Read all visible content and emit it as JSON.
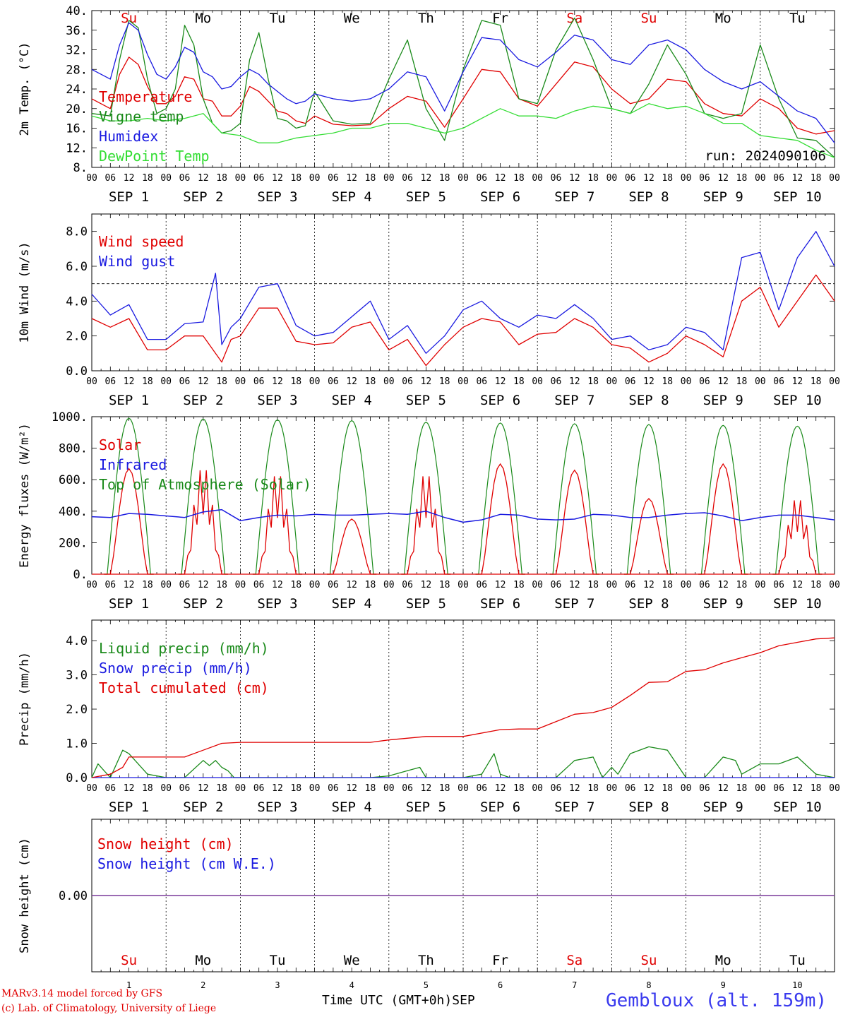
{
  "footer": {
    "line1": "MARv3.14 model forced by GFS",
    "line2": "(c) Lab. of Climatology, University of Liege",
    "xaxis_title": "Time UTC (GMT+0h)",
    "month_label": "SEP",
    "station": "Gembloux (alt. 159m)"
  },
  "colors": {
    "red": "#e00000",
    "green": "#1a8a1a",
    "blue": "#1a1ae0",
    "lightgreen": "#33dd33",
    "purple": "#7a3a9a"
  },
  "days": {
    "names": [
      "Su",
      "Mo",
      "Tu",
      "We",
      "Th",
      "Fr",
      "Sa",
      "Su",
      "Mo",
      "Tu"
    ],
    "weekend": [
      true,
      false,
      false,
      false,
      false,
      false,
      true,
      true,
      false,
      false
    ],
    "dates": [
      "SEP  1",
      "SEP  2",
      "SEP  3",
      "SEP  4",
      "SEP  5",
      "SEP  6",
      "SEP  7",
      "SEP  8",
      "SEP  9",
      "SEP 10"
    ],
    "numbers": [
      "1",
      "2",
      "3",
      "4",
      "5",
      "6",
      "7",
      "8",
      "9",
      "10"
    ],
    "hour_ticks": [
      "00",
      "06",
      "12",
      "18"
    ]
  },
  "chart_data": [
    {
      "type": "line",
      "id": "temperature",
      "ylabel": "2m Temp. (°C)",
      "yticks": [
        "8.",
        "12.",
        "16.",
        "20.",
        "24.",
        "28.",
        "32.",
        "36.",
        "40."
      ],
      "ylim": [
        8,
        40
      ],
      "run_label": "run: 2024090106",
      "x_unit": "hours since SEP 1 00 UTC",
      "series": [
        {
          "name": "Temperature",
          "color": "red",
          "x": [
            0,
            6,
            9,
            12,
            15,
            18,
            21,
            24,
            27,
            30,
            33,
            36,
            39,
            42,
            45,
            48,
            51,
            54,
            57,
            60,
            63,
            66,
            69,
            72,
            78,
            84,
            90,
            96,
            102,
            108,
            114,
            120,
            126,
            132,
            138,
            144,
            150,
            156,
            162,
            168,
            174,
            180,
            186,
            192,
            198,
            204,
            210,
            216,
            222,
            228,
            234,
            240
          ],
          "values": [
            22,
            20,
            27,
            30.5,
            29,
            24.5,
            21,
            21,
            22.5,
            26.5,
            26,
            22,
            21.5,
            18.5,
            18.5,
            20.5,
            24.5,
            23.5,
            21.5,
            19.5,
            19,
            17.5,
            17,
            18.5,
            16.8,
            16.5,
            16.7,
            20,
            22.5,
            21.5,
            16.2,
            22,
            28,
            27.5,
            22,
            20.5,
            25,
            29.5,
            28.5,
            24,
            21,
            22,
            26,
            25.5,
            21,
            19,
            18.5,
            22,
            20,
            16,
            14.8,
            15.5
          ]
        },
        {
          "name": "Vigne temp",
          "color": "green",
          "x": [
            0,
            6,
            9,
            12,
            15,
            18,
            21,
            24,
            27,
            30,
            33,
            36,
            39,
            42,
            45,
            48,
            51,
            54,
            57,
            60,
            63,
            66,
            69,
            72,
            78,
            84,
            90,
            96,
            102,
            108,
            114,
            120,
            126,
            132,
            138,
            144,
            150,
            156,
            162,
            168,
            174,
            180,
            186,
            192,
            198,
            204,
            210,
            216,
            222,
            228,
            234,
            240
          ],
          "values": [
            19,
            18.5,
            30,
            38,
            36.5,
            26,
            19,
            20,
            24,
            37,
            33,
            22,
            17,
            15,
            15.5,
            17,
            30,
            35.5,
            26,
            18,
            17.5,
            16,
            16.5,
            23.5,
            17.5,
            16.8,
            17,
            26,
            34,
            20,
            13.5,
            28,
            38,
            37,
            22,
            21,
            32,
            38.5,
            30,
            20,
            19,
            25,
            33,
            27,
            19,
            18,
            19,
            33,
            22,
            14,
            13.5,
            10
          ]
        },
        {
          "name": "Humidex",
          "color": "blue",
          "x": [
            0,
            6,
            9,
            12,
            15,
            18,
            21,
            24,
            27,
            30,
            33,
            36,
            39,
            42,
            45,
            48,
            51,
            54,
            57,
            60,
            63,
            66,
            69,
            72,
            78,
            84,
            90,
            96,
            102,
            108,
            114,
            120,
            126,
            132,
            138,
            144,
            150,
            156,
            162,
            168,
            174,
            180,
            186,
            192,
            198,
            204,
            210,
            216,
            222,
            228,
            234,
            240
          ],
          "values": [
            28,
            26,
            33,
            37.5,
            36,
            31,
            27,
            26,
            28.5,
            32.5,
            31.5,
            27.5,
            26.5,
            24,
            24.5,
            26.5,
            28,
            27,
            25,
            23.5,
            22,
            21,
            21.5,
            23,
            22,
            21.5,
            22,
            24,
            27.5,
            26.5,
            19.5,
            27.5,
            34.5,
            34,
            30,
            28.5,
            31.5,
            35,
            34,
            30,
            29,
            33,
            34,
            32,
            28,
            25.5,
            24,
            25.5,
            22.5,
            19.5,
            18,
            13
          ]
        },
        {
          "name": "DewPoint Temp",
          "color": "lightgreen",
          "x": [
            0,
            6,
            12,
            18,
            24,
            30,
            36,
            42,
            48,
            54,
            60,
            66,
            72,
            78,
            84,
            90,
            96,
            102,
            108,
            114,
            120,
            126,
            132,
            138,
            144,
            150,
            156,
            162,
            168,
            174,
            180,
            186,
            192,
            198,
            204,
            210,
            216,
            222,
            228,
            234,
            240
          ],
          "values": [
            18.5,
            17.5,
            17.5,
            18,
            17.5,
            18,
            19,
            15,
            14.5,
            13,
            13,
            14,
            14.5,
            15,
            16,
            16,
            17,
            17,
            16,
            15,
            16,
            18,
            20,
            18.5,
            18.5,
            18,
            19.5,
            20.5,
            20,
            19,
            21,
            20,
            20.5,
            19,
            17,
            17,
            14.5,
            14,
            13.5,
            11.5,
            10
          ]
        }
      ]
    },
    {
      "type": "line",
      "id": "wind",
      "ylabel": "10m Wind (m/s)",
      "yticks": [
        "0.0",
        "2.0",
        "4.0",
        "6.0",
        "8.0"
      ],
      "ylim": [
        0,
        9
      ],
      "reference_line": 5,
      "x_unit": "hours since SEP 1 00 UTC",
      "series": [
        {
          "name": "Wind speed",
          "color": "red",
          "x": [
            0,
            6,
            12,
            18,
            24,
            30,
            36,
            42,
            45,
            48,
            54,
            60,
            66,
            72,
            78,
            84,
            90,
            96,
            102,
            108,
            114,
            120,
            126,
            132,
            138,
            144,
            150,
            156,
            162,
            168,
            174,
            180,
            186,
            192,
            198,
            204,
            210,
            216,
            222,
            228,
            234,
            240
          ],
          "values": [
            3,
            2.5,
            3,
            1.2,
            1.2,
            2,
            2,
            0.5,
            1.8,
            2,
            3.6,
            3.6,
            1.7,
            1.5,
            1.6,
            2.5,
            2.8,
            1.2,
            1.8,
            0.3,
            1.5,
            2.5,
            3,
            2.8,
            1.5,
            2.1,
            2.2,
            3,
            2.5,
            1.5,
            1.3,
            0.5,
            1,
            2,
            1.5,
            0.8,
            4,
            4.8,
            2.5,
            4,
            5.5,
            4
          ]
        },
        {
          "name": "Wind gust",
          "color": "blue",
          "x": [
            0,
            6,
            12,
            18,
            24,
            30,
            36,
            40,
            42,
            45,
            48,
            54,
            60,
            66,
            72,
            78,
            84,
            90,
            96,
            102,
            108,
            114,
            120,
            126,
            132,
            138,
            144,
            150,
            156,
            162,
            168,
            174,
            180,
            186,
            192,
            198,
            204,
            210,
            216,
            222,
            228,
            234,
            240
          ],
          "values": [
            4.4,
            3.2,
            3.8,
            1.8,
            1.8,
            2.7,
            2.8,
            5.6,
            1.5,
            2.5,
            3,
            4.8,
            5,
            2.6,
            2,
            2.2,
            3.1,
            4,
            1.8,
            2.6,
            1,
            2,
            3.5,
            4,
            3,
            2.5,
            3.2,
            3,
            3.8,
            3,
            1.8,
            2,
            1.2,
            1.5,
            2.5,
            2.2,
            1.2,
            6.5,
            6.8,
            3.5,
            6.5,
            8,
            6
          ]
        }
      ]
    },
    {
      "type": "line",
      "id": "energy",
      "ylabel": "Energy fluxes (W/m²)",
      "yticks": [
        "0.",
        "200.",
        "400.",
        "600.",
        "800.",
        "1000."
      ],
      "ylim": [
        0,
        1000
      ],
      "x_unit": "hours since SEP 1 00 UTC",
      "daily_toa_peak": [
        990,
        985,
        980,
        975,
        965,
        960,
        955,
        950,
        945,
        940
      ],
      "daily_solar_peak": [
        670,
        690,
        650,
        350,
        650,
        700,
        660,
        480,
        700,
        490
      ],
      "daily_solar_spiky": [
        false,
        true,
        true,
        false,
        true,
        false,
        false,
        false,
        false,
        true
      ],
      "series": [
        {
          "name": "Solar",
          "color": "red"
        },
        {
          "name": "Infrared",
          "color": "blue",
          "x": [
            0,
            6,
            12,
            18,
            24,
            30,
            36,
            42,
            48,
            54,
            60,
            66,
            72,
            78,
            84,
            90,
            96,
            102,
            108,
            114,
            120,
            126,
            132,
            138,
            144,
            150,
            156,
            162,
            168,
            174,
            180,
            186,
            192,
            198,
            204,
            210,
            216,
            222,
            228,
            234,
            240
          ],
          "values": [
            365,
            360,
            385,
            380,
            370,
            360,
            395,
            410,
            340,
            360,
            375,
            370,
            380,
            375,
            375,
            380,
            385,
            380,
            400,
            360,
            330,
            345,
            380,
            375,
            350,
            345,
            350,
            380,
            375,
            360,
            360,
            375,
            385,
            390,
            370,
            340,
            360,
            375,
            375,
            360,
            345
          ]
        },
        {
          "name": "Top of Atmosphere (Solar)",
          "color": "green"
        }
      ]
    },
    {
      "type": "line",
      "id": "precip",
      "ylabel": "Precip (mm/h)",
      "yticks": [
        "0.0",
        "1.0",
        "2.0",
        "3.0",
        "4.0"
      ],
      "ylim": [
        0,
        4.6
      ],
      "x_unit": "hours since SEP 1 00 UTC",
      "series": [
        {
          "name": "Liquid precip (mm/h)",
          "color": "green",
          "x": [
            0,
            2,
            4,
            6,
            10,
            12,
            14,
            18,
            24,
            30,
            36,
            38,
            40,
            42,
            44,
            46,
            48,
            54,
            60,
            84,
            90,
            96,
            102,
            106,
            108,
            114,
            120,
            126,
            130,
            132,
            135,
            138,
            150,
            156,
            162,
            165,
            168,
            170,
            174,
            180,
            186,
            192,
            198,
            204,
            208,
            210,
            216,
            222,
            228,
            234,
            240
          ],
          "values": [
            0,
            0.4,
            0.2,
            0,
            0.8,
            0.7,
            0.5,
            0.1,
            0,
            0,
            0.5,
            0.35,
            0.5,
            0.3,
            0.2,
            0,
            0,
            0,
            0,
            0,
            0,
            0.05,
            0.2,
            0.3,
            0,
            0,
            0,
            0.1,
            0.7,
            0.1,
            0,
            0,
            0,
            0.5,
            0.6,
            0,
            0.3,
            0.1,
            0.7,
            0.9,
            0.8,
            0,
            0,
            0.6,
            0.5,
            0.1,
            0.4,
            0.4,
            0.6,
            0.1,
            0
          ]
        },
        {
          "name": "Snow precip (mm/h)",
          "color": "blue",
          "x": [
            0,
            240
          ],
          "values": [
            0,
            0
          ]
        },
        {
          "name": "Total cumulated (cm)",
          "color": "red",
          "x": [
            0,
            6,
            10,
            12,
            24,
            30,
            36,
            42,
            48,
            90,
            96,
            108,
            114,
            120,
            132,
            138,
            144,
            156,
            162,
            168,
            174,
            180,
            186,
            192,
            198,
            204,
            210,
            216,
            222,
            228,
            234,
            240
          ],
          "values": [
            0,
            0.1,
            0.3,
            0.6,
            0.6,
            0.6,
            0.8,
            1.0,
            1.03,
            1.03,
            1.1,
            1.2,
            1.2,
            1.2,
            1.4,
            1.42,
            1.42,
            1.85,
            1.9,
            2.05,
            2.4,
            2.78,
            2.8,
            3.1,
            3.15,
            3.35,
            3.5,
            3.65,
            3.85,
            3.95,
            4.05,
            4.08
          ]
        }
      ]
    },
    {
      "type": "line",
      "id": "snow",
      "ylabel": "Snow height (cm)",
      "yticks": [
        "0.00"
      ],
      "ylim": [
        -1,
        1
      ],
      "x_unit": "hours since SEP 1 00 UTC",
      "series": [
        {
          "name": "Snow height (cm)",
          "color": "red",
          "x": [
            0,
            240
          ],
          "values": [
            0,
            0
          ]
        },
        {
          "name": "Snow height (cm W.E.)",
          "color": "blue",
          "x": [
            0,
            240
          ],
          "values": [
            0,
            0
          ]
        }
      ]
    }
  ]
}
